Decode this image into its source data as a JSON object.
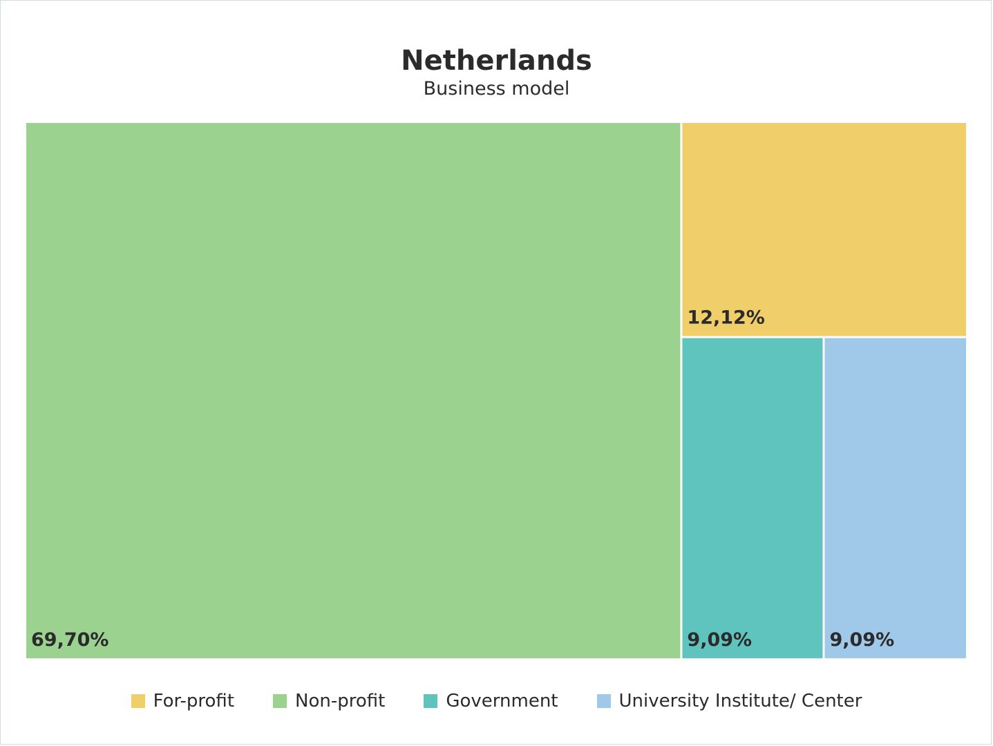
{
  "title": "Netherlands",
  "subtitle": "Business model",
  "chart_data": {
    "type": "treemap",
    "title": "Netherlands",
    "subtitle": "Business model",
    "items": [
      {
        "name": "Non-profit",
        "value": 69.7,
        "label": "69,70%",
        "color": "#9cd290"
      },
      {
        "name": "For-profit",
        "value": 12.12,
        "label": "12,12%",
        "color": "#f0ce69"
      },
      {
        "name": "Government",
        "value": 9.09,
        "label": "9,09%",
        "color": "#5ec4bd"
      },
      {
        "name": "University Institute/ Center",
        "value": 9.09,
        "label": "9,09%",
        "color": "#a0c9e9"
      }
    ],
    "legend": [
      {
        "name": "For-profit",
        "color": "#f0ce69"
      },
      {
        "name": "Non-profit",
        "color": "#9cd290"
      },
      {
        "name": "Government",
        "color": "#5ec4bd"
      },
      {
        "name": "University Institute/ Center",
        "color": "#a0c9e9"
      }
    ],
    "legend_position": "bottom"
  }
}
